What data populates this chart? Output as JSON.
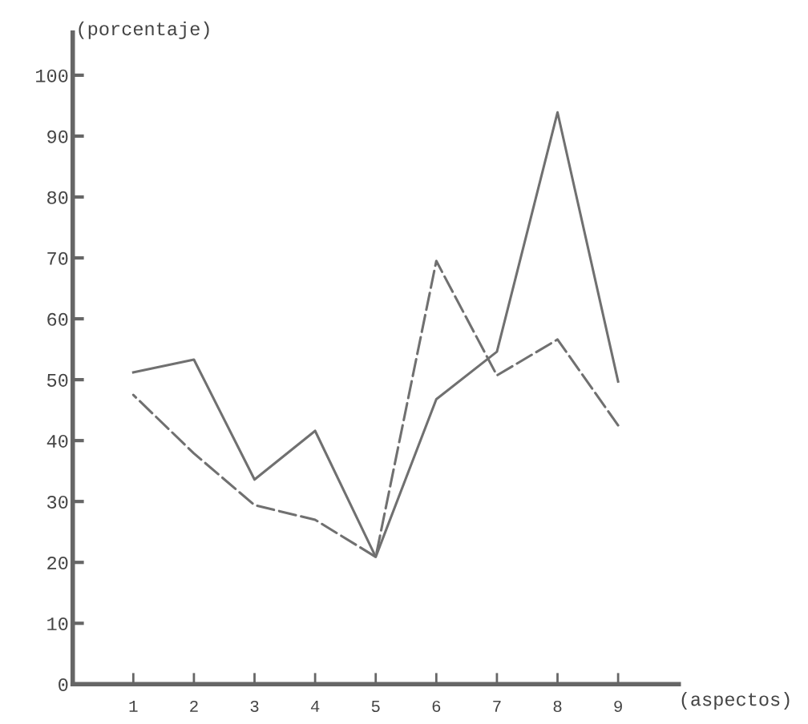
{
  "chart_data": {
    "type": "line",
    "xlabel": "(aspectos)",
    "ylabel": "(porcentaje)",
    "x": [
      1,
      2,
      3,
      4,
      5,
      6,
      7,
      8,
      9
    ],
    "series": [
      {
        "color": "#707070",
        "line_style": "solid",
        "values": [
          51.2,
          53.3,
          33.6,
          41.6,
          20.9,
          46.8,
          54.6,
          93.9,
          49.7
        ]
      },
      {
        "color": "#707070",
        "line_style": "dashed",
        "values": [
          47.5,
          37.9,
          29.4,
          27,
          20.9,
          69.5,
          50.7,
          56.6,
          42.5
        ]
      }
    ],
    "xlim": [
      0,
      10
    ],
    "ylim": [
      0,
      107
    ],
    "xticks": [
      1,
      2,
      3,
      4,
      5,
      6,
      7,
      8,
      9
    ],
    "yticks": [
      0,
      10,
      20,
      30,
      40,
      50,
      60,
      70,
      80,
      90,
      100
    ],
    "grid": false,
    "legend": false,
    "marker": "none"
  }
}
